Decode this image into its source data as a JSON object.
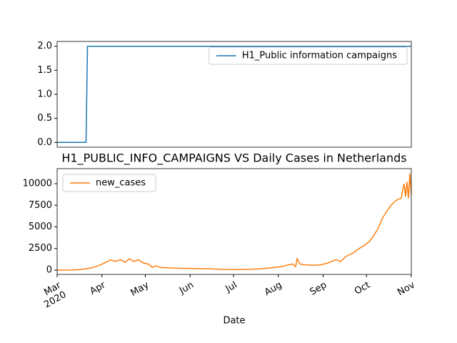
{
  "chart_data": [
    {
      "type": "line",
      "xlim": [
        0,
        245
      ],
      "ylim": [
        -0.1,
        2.1
      ],
      "yticks": [
        {
          "value": 0,
          "label": "0.0"
        },
        {
          "value": 0.5,
          "label": "0.5"
        },
        {
          "value": 1,
          "label": "1.0"
        },
        {
          "value": 1.5,
          "label": "1.5"
        },
        {
          "value": 2,
          "label": "2.0"
        }
      ],
      "legend": "upper right",
      "x": [
        0,
        20,
        21,
        245
      ],
      "series": [
        {
          "name": "H1_Public information campaigns",
          "color": "#1f77b4",
          "values": [
            0,
            0,
            2,
            2
          ]
        }
      ]
    },
    {
      "type": "line",
      "title": "H1_PUBLIC_INFO_CAMPAIGNS VS Daily Cases in Netherlands",
      "xlabel": "Date",
      "xlim": [
        0,
        245
      ],
      "xticks": [
        {
          "value": 0,
          "label": "Mar\n2020"
        },
        {
          "value": 31,
          "label": "Apr"
        },
        {
          "value": 61,
          "label": "May"
        },
        {
          "value": 92,
          "label": "Jun"
        },
        {
          "value": 122,
          "label": "Jul"
        },
        {
          "value": 153,
          "label": "Aug"
        },
        {
          "value": 184,
          "label": "Sep"
        },
        {
          "value": 214,
          "label": "Oct"
        },
        {
          "value": 245,
          "label": "Nov"
        }
      ],
      "ylim": [
        -500,
        11740
      ],
      "yticks": [
        0,
        2500,
        5000,
        7500,
        10000
      ],
      "legend": "upper left",
      "x": [
        0,
        10,
        15,
        20,
        25,
        30,
        35,
        37,
        40,
        44,
        47,
        50,
        53,
        56,
        60,
        63,
        66,
        68,
        72,
        78,
        85,
        95,
        105,
        115,
        125,
        135,
        145,
        155,
        160,
        163,
        165,
        166,
        168,
        172,
        178,
        182,
        187,
        193,
        196,
        200,
        205,
        208,
        212,
        216,
        219,
        222,
        225,
        228,
        231,
        234,
        236,
        238,
        240,
        241,
        242,
        243,
        244,
        245
      ],
      "series": [
        {
          "name": "new_cases",
          "color": "#ff7f0e",
          "values": [
            0,
            10,
            50,
            150,
            300,
            600,
            1000,
            1200,
            1000,
            1200,
            900,
            1300,
            1000,
            1200,
            800,
            700,
            300,
            500,
            300,
            250,
            200,
            180,
            150,
            80,
            70,
            100,
            200,
            400,
            600,
            700,
            400,
            1300,
            700,
            600,
            550,
            600,
            800,
            1200,
            1000,
            1600,
            2000,
            2400,
            2800,
            3300,
            4000,
            4800,
            6000,
            6800,
            7500,
            8000,
            8200,
            8300,
            10000,
            8500,
            10200,
            8300,
            11200,
            8700
          ]
        }
      ]
    }
  ]
}
